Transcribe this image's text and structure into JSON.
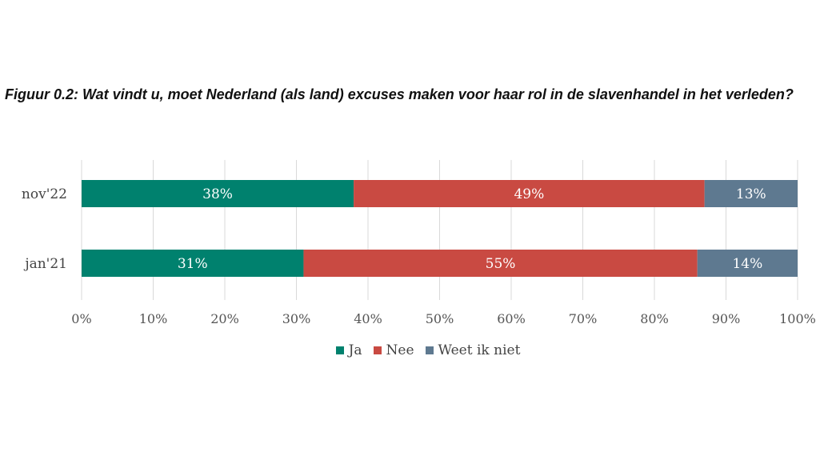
{
  "title": "Figuur 0.2: Wat vindt u, moet Nederland (als land) excuses maken voor haar rol in de slavenhandel in het verleden?",
  "chart_data": {
    "type": "bar",
    "orientation": "horizontal",
    "stacked": true,
    "normalized": "percent",
    "categories": [
      "nov'22",
      "jan'21"
    ],
    "series": [
      {
        "name": "Ja",
        "values": [
          38,
          31
        ],
        "labels": [
          "38%",
          "31%"
        ],
        "color": "#00816e"
      },
      {
        "name": "Nee",
        "values": [
          49,
          55
        ],
        "labels": [
          "49%",
          "55%"
        ],
        "color": "#c94a42"
      },
      {
        "name": "Weet ik niet",
        "values": [
          13,
          14
        ],
        "labels": [
          "13%",
          "14%"
        ],
        "color": "#5e7990"
      }
    ],
    "xlim": [
      0,
      100
    ],
    "x_ticks": [
      "0%",
      "10%",
      "20%",
      "30%",
      "40%",
      "50%",
      "60%",
      "70%",
      "80%",
      "90%",
      "100%"
    ],
    "grid": true,
    "legend_position": "bottom"
  }
}
